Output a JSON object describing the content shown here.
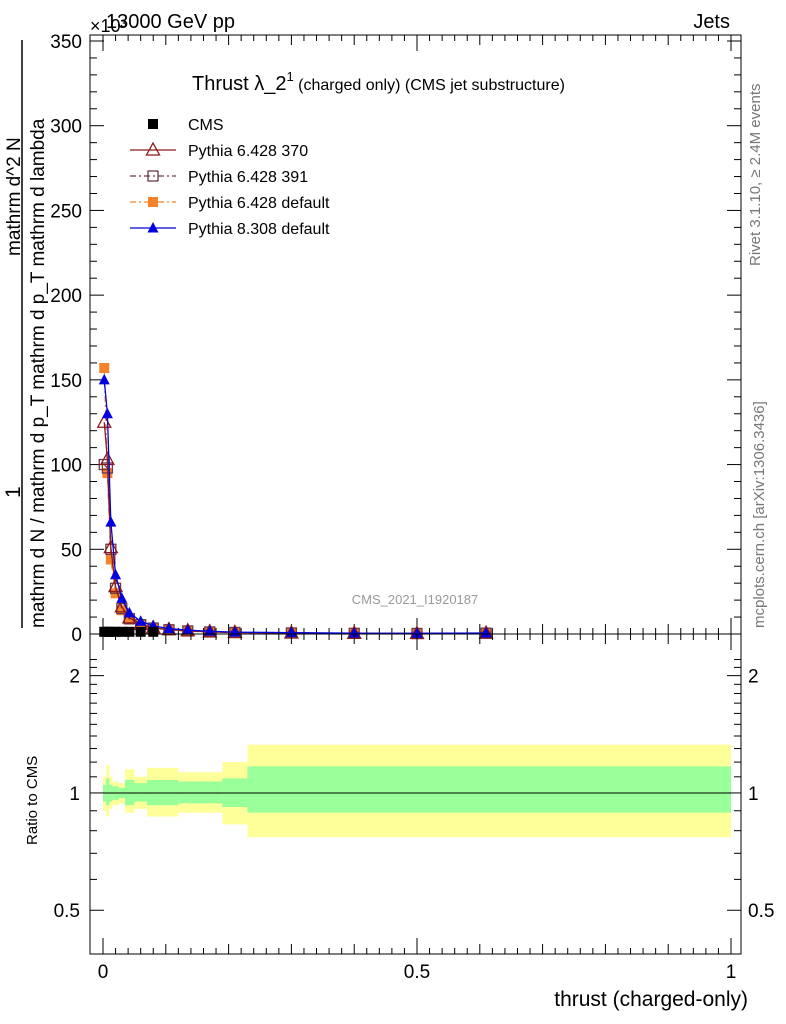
{
  "header": {
    "left": "13000 GeV pp",
    "right": "Jets",
    "exponent": "×10³"
  },
  "title": {
    "main": "Thrust λ_2",
    "sup": "1",
    "sub": " (charged only) (CMS jet substructure)"
  },
  "side_labels": {
    "rivet": "Rivet 3.1.10, ≥ 2.4M events",
    "mcplots": "mcplots.cern.ch [arXiv:1306.3436]"
  },
  "watermark": "CMS_2021_I1920187",
  "y_label": {
    "one": "1",
    "den": "mathrm d N / mathrm d p_T mathrm d p_T mathrm d lambda",
    "num": "mathrm d^2 N"
  },
  "ratio_ylabel": "Ratio to CMS",
  "xlabel": "thrust (charged-only)",
  "colors": {
    "cms": "#000000",
    "p370": "#8b1a1a",
    "p391": "#6b3a4a",
    "p6def": "#f5832a",
    "p8def": "#0000e0",
    "band_inner": "#99ff99",
    "band_outer": "#ffff99"
  },
  "chart_data": [
    {
      "type": "line",
      "panel": "main",
      "xlim": [
        0,
        1
      ],
      "ylim": [
        0,
        350
      ],
      "y_multiplier": 1000,
      "ytick_labels": [
        "0",
        "50",
        "100",
        "150",
        "200",
        "250",
        "300",
        "350"
      ],
      "xtick_labels": [
        "0",
        "0.5",
        "1"
      ],
      "x": [
        0.002,
        0.007,
        0.0125,
        0.02,
        0.03,
        0.042,
        0.06,
        0.08,
        0.105,
        0.135,
        0.17,
        0.21,
        0.3,
        0.4,
        0.5,
        0.61
      ],
      "series": [
        {
          "name": "CMS",
          "marker": "square-filled",
          "values": [
            1.3,
            1.3,
            1.3,
            1.3,
            1.3,
            1.3,
            1.3,
            1.3,
            1.3,
            1.3,
            1.3,
            1.3,
            0.5,
            0.3,
            0.2,
            0.3
          ]
        },
        {
          "name": "Pythia 6.428 370",
          "marker": "triangle-open",
          "values": [
            125,
            103,
            51,
            28,
            16,
            9.5,
            5.8,
            3.7,
            2.6,
            1.9,
            1.3,
            0.9,
            0.6,
            0.4,
            0.3,
            0.5
          ]
        },
        {
          "name": "Pythia 6.428 391",
          "marker": "square-open",
          "values": [
            100,
            98,
            50,
            27,
            15,
            9.0,
            5.5,
            3.5,
            2.5,
            1.8,
            1.2,
            0.9,
            0.6,
            0.4,
            0.3,
            0.5
          ]
        },
        {
          "name": "Pythia 6.428 default",
          "marker": "square-filled",
          "values": [
            157,
            95,
            44,
            24,
            14,
            8.5,
            5.2,
            3.3,
            2.4,
            1.7,
            1.2,
            0.8,
            0.5,
            0.4,
            0.3,
            0.4
          ]
        },
        {
          "name": "Pythia 8.308 default",
          "marker": "triangle-filled",
          "values": [
            150,
            130,
            66,
            35,
            21,
            12.5,
            7.5,
            4.8,
            3.2,
            2.3,
            1.6,
            1.1,
            0.8,
            0.5,
            0.4,
            0.6
          ]
        }
      ]
    },
    {
      "type": "area",
      "panel": "ratio",
      "ylabel": "Ratio to CMS",
      "xlabel": "thrust (charged-only)",
      "xlim": [
        0,
        1
      ],
      "ylim": [
        0.4,
        2.3
      ],
      "yscale": "log",
      "ytick_labels": [
        "0.5",
        "1",
        "2"
      ],
      "xtick_labels": [
        "0",
        "0.5",
        "1"
      ],
      "bins": [
        {
          "x0": 0.0,
          "x1": 0.005,
          "inner": [
            0.95,
            1.05
          ],
          "outer": [
            0.9,
            1.1
          ]
        },
        {
          "x0": 0.005,
          "x1": 0.01,
          "inner": [
            0.93,
            1.09
          ],
          "outer": [
            0.87,
            1.18
          ]
        },
        {
          "x0": 0.01,
          "x1": 0.015,
          "inner": [
            0.95,
            1.05
          ],
          "outer": [
            0.91,
            1.1
          ]
        },
        {
          "x0": 0.015,
          "x1": 0.025,
          "inner": [
            0.96,
            1.04
          ],
          "outer": [
            0.93,
            1.07
          ]
        },
        {
          "x0": 0.025,
          "x1": 0.035,
          "inner": [
            0.97,
            1.03
          ],
          "outer": [
            0.94,
            1.06
          ]
        },
        {
          "x0": 0.035,
          "x1": 0.05,
          "inner": [
            0.93,
            1.08
          ],
          "outer": [
            0.89,
            1.15
          ]
        },
        {
          "x0": 0.05,
          "x1": 0.07,
          "inner": [
            0.95,
            1.06
          ],
          "outer": [
            0.91,
            1.1
          ]
        },
        {
          "x0": 0.07,
          "x1": 0.12,
          "inner": [
            0.93,
            1.08
          ],
          "outer": [
            0.87,
            1.16
          ]
        },
        {
          "x0": 0.12,
          "x1": 0.19,
          "inner": [
            0.94,
            1.07
          ],
          "outer": [
            0.89,
            1.13
          ]
        },
        {
          "x0": 0.19,
          "x1": 0.23,
          "inner": [
            0.92,
            1.09
          ],
          "outer": [
            0.83,
            1.2
          ]
        },
        {
          "x0": 0.23,
          "x1": 1.0,
          "inner": [
            0.89,
            1.17
          ],
          "outer": [
            0.77,
            1.33
          ]
        }
      ]
    }
  ]
}
